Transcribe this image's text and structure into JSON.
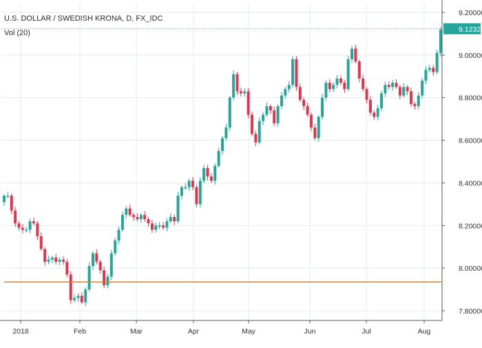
{
  "legend": {
    "symbol": "U.S. DOLLAR / SWEDISH KRONA, D, FX_IDC",
    "indicator": "Vol (20)"
  },
  "colors": {
    "up": "#26a69a",
    "down": "#e0364e",
    "grid": "#e3eaf2",
    "last_price_line": "#26a69a",
    "support_line": "#f57c00",
    "axis_text": "#333333"
  },
  "chart_data": {
    "type": "candlestick",
    "title": "U.S. DOLLAR / SWEDISH KRONA, D, FX_IDC",
    "xlabel": "",
    "ylabel": "",
    "x_tick_labels": [
      "2018",
      "Feb",
      "Mar",
      "Apr",
      "May",
      "Jun",
      "Jul",
      "Aug"
    ],
    "y_tick_labels": [
      "9.20000",
      "9.00000",
      "8.80000",
      "8.60000",
      "8.40000",
      "8.20000",
      "8.00000",
      "7.80000"
    ],
    "y_ticks": [
      9.2,
      9.0,
      8.8,
      8.6,
      8.4,
      8.2,
      8.0,
      7.8
    ],
    "ylim": [
      7.76,
      9.21
    ],
    "grid": true,
    "last_price": 9.1232,
    "last_price_label": "9.12320",
    "horizontal_line": 7.935,
    "closes": [
      8.34,
      8.34,
      8.27,
      8.21,
      8.19,
      8.18,
      8.18,
      8.22,
      8.21,
      8.15,
      8.09,
      8.03,
      8.04,
      8.05,
      8.03,
      8.04,
      8.03,
      7.97,
      7.85,
      7.86,
      7.87,
      7.84,
      7.9,
      8.01,
      8.07,
      8.03,
      7.99,
      7.92,
      7.96,
      8.07,
      8.13,
      8.18,
      8.25,
      8.28,
      8.25,
      8.24,
      8.23,
      8.25,
      8.23,
      8.21,
      8.18,
      8.2,
      8.2,
      8.19,
      8.22,
      8.24,
      8.22,
      8.34,
      8.38,
      8.38,
      8.41,
      8.38,
      8.3,
      8.41,
      8.47,
      8.43,
      8.41,
      8.48,
      8.55,
      8.61,
      8.66,
      8.8,
      8.91,
      8.83,
      8.82,
      8.83,
      8.72,
      8.63,
      8.59,
      8.69,
      8.72,
      8.76,
      8.74,
      8.68,
      8.76,
      8.81,
      8.84,
      8.86,
      8.98,
      8.85,
      8.79,
      8.76,
      8.72,
      8.66,
      8.61,
      8.71,
      8.8,
      8.87,
      8.84,
      8.86,
      8.89,
      8.87,
      8.84,
      8.98,
      9.03,
      8.97,
      8.89,
      8.84,
      8.79,
      8.73,
      8.71,
      8.75,
      8.82,
      8.86,
      8.85,
      8.87,
      8.85,
      8.81,
      8.85,
      8.83,
      8.77,
      8.76,
      8.81,
      8.88,
      8.93,
      8.94,
      8.92,
      9.01,
      9.12
    ]
  }
}
